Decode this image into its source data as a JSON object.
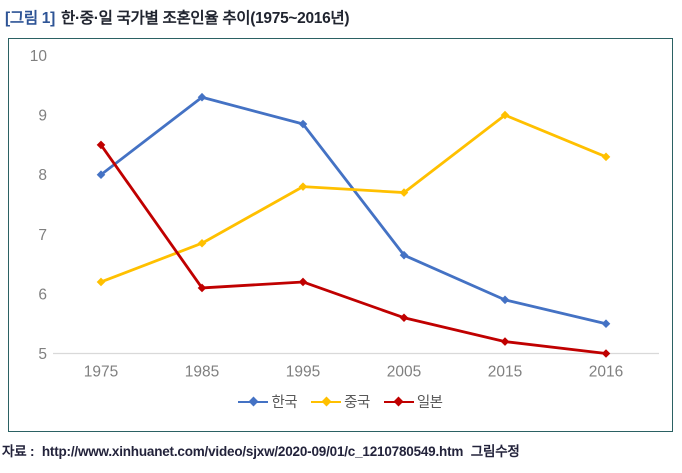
{
  "title": {
    "tag": "[그림 1]",
    "text": "한·중·일 국가별 조혼인율 추이(1975~2016년)"
  },
  "source": {
    "label": "자료 :",
    "url": "http://www.xinhuanet.com/video/sjxw/2020-09/01/c_1210780549.htm",
    "note": "그림수정"
  },
  "chart_data": {
    "type": "line",
    "title": "한·중·일 국가별 조혼인율 추이(1975~2016년)",
    "categories": [
      "1975",
      "1985",
      "1995",
      "2005",
      "2015",
      "2016"
    ],
    "series": [
      {
        "name": "한국",
        "color": "#4472C4",
        "values": [
          8.0,
          9.3,
          8.85,
          6.65,
          5.9,
          5.5
        ]
      },
      {
        "name": "중국",
        "color": "#FFC000",
        "values": [
          6.2,
          6.85,
          7.8,
          7.7,
          9.0,
          8.3
        ]
      },
      {
        "name": "일본",
        "color": "#C00000",
        "values": [
          8.5,
          6.1,
          6.2,
          5.6,
          5.2,
          5.0
        ]
      }
    ],
    "ylim": [
      5,
      10
    ],
    "yticks": [
      10,
      9,
      8,
      7,
      6,
      5
    ],
    "grid": "bottom-only",
    "marker": "diamond",
    "legend_position": "bottom-center",
    "axis_text_color": "#808080",
    "gridline_color": "#D9D9D9",
    "frame_color": "#2B6163"
  }
}
